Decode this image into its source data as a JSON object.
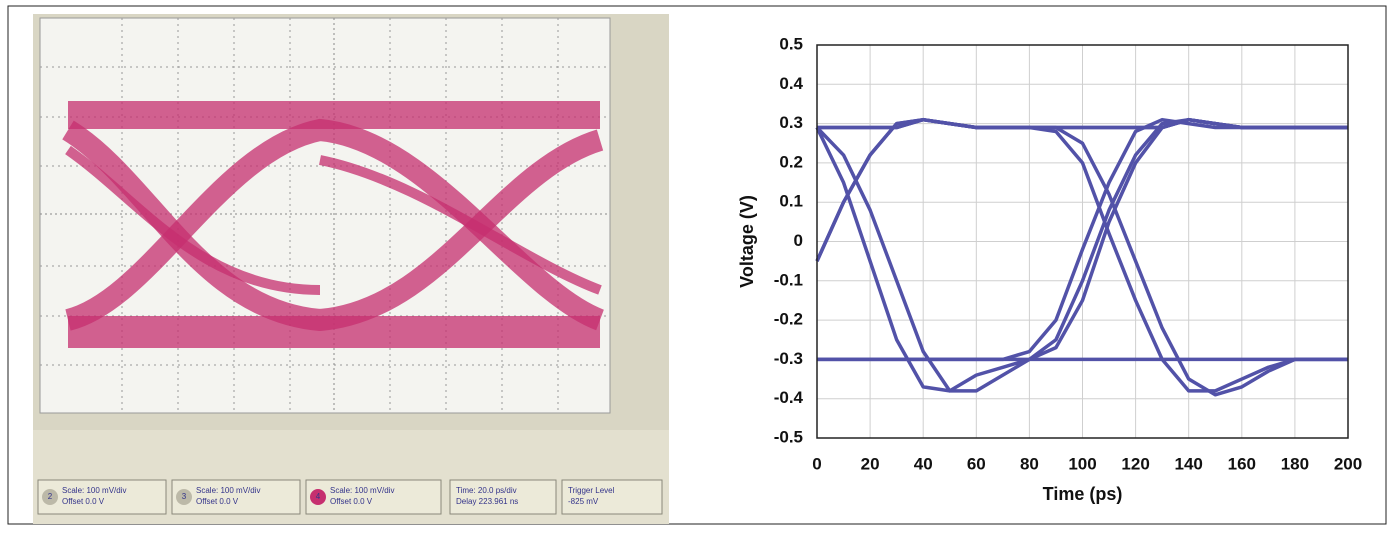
{
  "scope": {
    "buttons": [
      {
        "channel": "2",
        "lines": [
          "Scale: 100 mV/div",
          "Offset 0.0 V"
        ]
      },
      {
        "channel": "3",
        "lines": [
          "Scale: 100 mV/div",
          "Offset 0.0 V"
        ]
      },
      {
        "channel": "4",
        "lines": [
          "Scale: 100 mV/div",
          "Offset 0.0 V"
        ]
      },
      {
        "lines": [
          "Time: 20.0 ps/div",
          "Delay 223.961 ns"
        ]
      },
      {
        "lines": [
          "Trigger Level",
          "-825 mV"
        ]
      }
    ]
  },
  "chart_data": {
    "type": "line",
    "ylabel": "Voltage (V)",
    "xlabel": "Time (ps)",
    "x": [
      0,
      10,
      20,
      30,
      40,
      50,
      60,
      70,
      80,
      90,
      100,
      110,
      120,
      130,
      140,
      150,
      160,
      170,
      180,
      190,
      200
    ],
    "xlim": [
      0,
      200
    ],
    "xticks": [
      0,
      20,
      40,
      60,
      80,
      100,
      120,
      140,
      160,
      180,
      200
    ],
    "ylim": [
      -0.5,
      0.5
    ],
    "yticks": [
      -0.5,
      -0.4,
      -0.3,
      -0.2,
      -0.1,
      0,
      0.1,
      0.2,
      0.3,
      0.4,
      0.5
    ],
    "grid": true,
    "series": [
      {
        "color": "#5252a8",
        "values": [
          0.29,
          0.29,
          0.29,
          0.29,
          0.31,
          0.3,
          0.29,
          0.29,
          0.29,
          0.29,
          0.29,
          0.29,
          0.29,
          0.29,
          0.31,
          0.3,
          0.29,
          0.29,
          0.29,
          0.29,
          0.29
        ]
      },
      {
        "color": "#5252a8",
        "values": [
          -0.3,
          -0.3,
          -0.3,
          -0.3,
          -0.3,
          -0.3,
          -0.3,
          -0.3,
          -0.3,
          -0.3,
          -0.3,
          -0.3,
          -0.3,
          -0.3,
          -0.3,
          -0.3,
          -0.3,
          -0.3,
          -0.3,
          -0.3,
          -0.3
        ]
      },
      {
        "color": "#5252a8",
        "values": [
          -0.05,
          0.1,
          0.22,
          0.3,
          0.31,
          0.3,
          0.29,
          0.29,
          0.29,
          0.28,
          0.2,
          0.02,
          -0.15,
          -0.3,
          -0.38,
          -0.38,
          -0.35,
          -0.32,
          -0.3,
          -0.3,
          -0.3
        ]
      },
      {
        "color": "#5252a8",
        "values": [
          0.29,
          0.15,
          -0.05,
          -0.25,
          -0.37,
          -0.38,
          -0.34,
          -0.32,
          -0.3,
          -0.25,
          -0.1,
          0.08,
          0.22,
          0.3,
          0.31,
          0.3,
          0.29,
          0.29,
          0.29,
          0.29,
          0.29
        ]
      },
      {
        "color": "#5252a8",
        "values": [
          0.29,
          0.22,
          0.08,
          -0.1,
          -0.28,
          -0.38,
          -0.38,
          -0.34,
          -0.3,
          -0.27,
          -0.15,
          0.05,
          0.2,
          0.29,
          0.31,
          0.3,
          0.29,
          0.29,
          0.29,
          0.29,
          0.29
        ]
      },
      {
        "color": "#5252a8",
        "values": [
          -0.05,
          0.1,
          0.22,
          0.3,
          0.31,
          0.3,
          0.29,
          0.29,
          0.29,
          0.29,
          0.29,
          0.29,
          0.29,
          0.29,
          0.31,
          0.3,
          0.29,
          0.29,
          0.29,
          0.29,
          0.29
        ]
      },
      {
        "color": "#5252a8",
        "values": [
          0.29,
          0.29,
          0.29,
          0.29,
          0.31,
          0.3,
          0.29,
          0.29,
          0.29,
          0.29,
          0.25,
          0.12,
          -0.05,
          -0.22,
          -0.35,
          -0.39,
          -0.37,
          -0.33,
          -0.3,
          -0.3,
          -0.3
        ]
      },
      {
        "color": "#5252a8",
        "values": [
          -0.3,
          -0.3,
          -0.3,
          -0.3,
          -0.3,
          -0.3,
          -0.3,
          -0.3,
          -0.28,
          -0.2,
          -0.02,
          0.15,
          0.28,
          0.31,
          0.3,
          0.29,
          0.29,
          0.29,
          0.29,
          0.29,
          0.29
        ]
      }
    ]
  }
}
